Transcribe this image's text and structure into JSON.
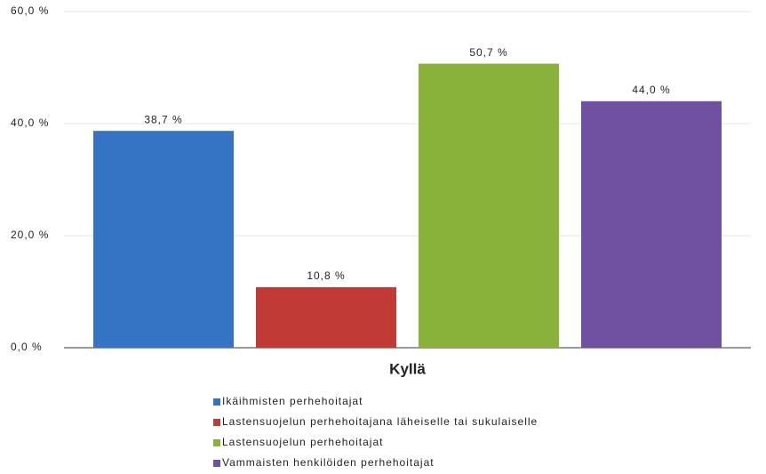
{
  "chart_data": {
    "type": "bar",
    "categories": [
      "Kyllä"
    ],
    "series": [
      {
        "name": "Ikäihmisten perhehoitajat",
        "color": "#3573c4",
        "values": [
          38.7
        ],
        "value_labels": [
          "38,7 %"
        ]
      },
      {
        "name": "Lastensuojelun perhehoitajana läheiselle tai sukulaiselle",
        "color": "#c23a35",
        "values": [
          10.8
        ],
        "value_labels": [
          "10,8 %"
        ]
      },
      {
        "name": "Lastensuojelun perhehoitajat",
        "color": "#89b23a",
        "values": [
          50.7
        ],
        "value_labels": [
          "50,7 %"
        ]
      },
      {
        "name": "Vammaisten henkilöiden perhehoitajat",
        "color": "#7050a0",
        "values": [
          44.0
        ],
        "value_labels": [
          "44,0 %"
        ]
      }
    ],
    "ylim": [
      0,
      60
    ],
    "yticks": [
      {
        "value": 0,
        "label": "0,0 %"
      },
      {
        "value": 20,
        "label": "20,0 %"
      },
      {
        "value": 40,
        "label": "40,0 %"
      },
      {
        "value": 60,
        "label": "60,0 %"
      }
    ],
    "grid": true
  }
}
